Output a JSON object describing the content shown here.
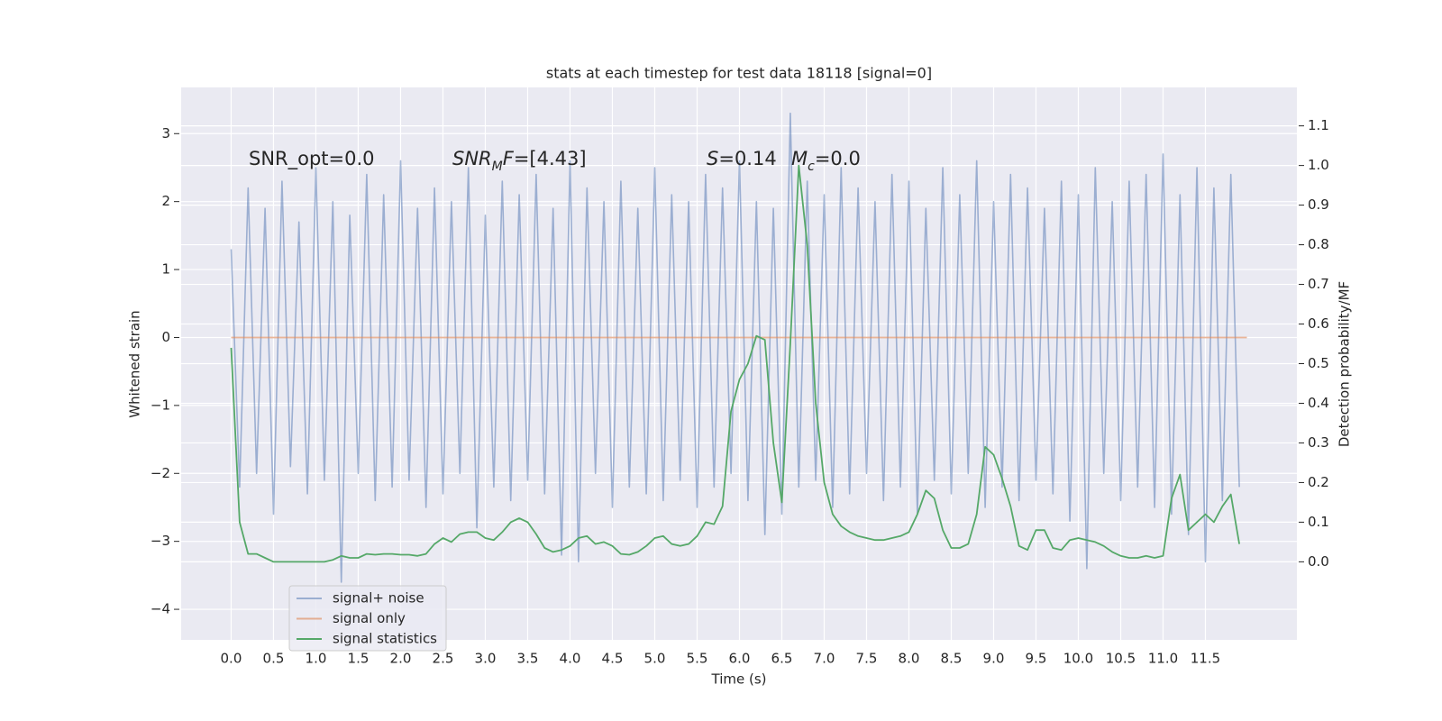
{
  "chart_data": {
    "type": "line",
    "title": "stats at each timestep for test data 18118 [signal=0]",
    "xlabel": "Time (s)",
    "ylabel": "Whitened strain",
    "y2label": "Detection probability/MF",
    "annotations": [
      {
        "parts": [
          {
            "text": "SNR_opt=0.0",
            "style": "normal"
          }
        ]
      },
      {
        "parts": [
          {
            "text": "SNR",
            "style": "italic"
          },
          {
            "text": "M",
            "style": "sub"
          },
          {
            "text": "F",
            "style": "italic"
          },
          {
            "text": "=[4.43]",
            "style": "normal"
          }
        ]
      },
      {
        "parts": [
          {
            "text": "S",
            "style": "italic"
          },
          {
            "text": "=0.14",
            "style": "normal"
          }
        ]
      },
      {
        "parts": [
          {
            "text": "M",
            "style": "italic"
          },
          {
            "text": "c",
            "style": "sub"
          },
          {
            "text": "=0.0",
            "style": "normal"
          }
        ]
      }
    ],
    "x": [
      0,
      0.1,
      0.2,
      0.3,
      0.4,
      0.5,
      0.6,
      0.7,
      0.8,
      0.9,
      1,
      1.1,
      1.2,
      1.3,
      1.4,
      1.5,
      1.6,
      1.7,
      1.8,
      1.9,
      2,
      2.1,
      2.2,
      2.3,
      2.4,
      2.5,
      2.6,
      2.7,
      2.8,
      2.9,
      3,
      3.1,
      3.2,
      3.3,
      3.4,
      3.5,
      3.6,
      3.7,
      3.8,
      3.9,
      4,
      4.1,
      4.2,
      4.3,
      4.4,
      4.5,
      4.6,
      4.7,
      4.8,
      4.9,
      5,
      5.1,
      5.2,
      5.3,
      5.4,
      5.5,
      5.6,
      5.7,
      5.8,
      5.9,
      6,
      6.1,
      6.2,
      6.3,
      6.4,
      6.5,
      6.6,
      6.7,
      6.8,
      6.9,
      7,
      7.1,
      7.2,
      7.3,
      7.4,
      7.5,
      7.6,
      7.7,
      7.8,
      7.9,
      8,
      8.1,
      8.2,
      8.3,
      8.4,
      8.5,
      8.6,
      8.7,
      8.8,
      8.9,
      9,
      9.1,
      9.2,
      9.3,
      9.4,
      9.5,
      9.6,
      9.7,
      9.8,
      9.9,
      10,
      10.1,
      10.2,
      10.3,
      10.4,
      10.5,
      10.6,
      10.7,
      10.8,
      10.9,
      11,
      11.1,
      11.2,
      11.3,
      11.4,
      11.5,
      11.6,
      11.7,
      11.8,
      11.9
    ],
    "series": [
      {
        "name": "signal+ noise",
        "color": "#4c72b0",
        "opacity": 0.5,
        "axis": "y",
        "values": [
          1.3,
          -2.2,
          2.2,
          -2.0,
          1.9,
          -2.6,
          2.3,
          -1.9,
          1.7,
          -2.3,
          2.5,
          -2.1,
          2.0,
          -3.6,
          1.8,
          -2.0,
          2.4,
          -2.4,
          2.1,
          -2.2,
          2.6,
          -2.1,
          1.9,
          -2.5,
          2.2,
          -2.3,
          2.0,
          -2.0,
          2.5,
          -2.8,
          1.8,
          -2.2,
          2.3,
          -2.4,
          2.1,
          -2.1,
          2.4,
          -2.3,
          1.9,
          -3.2,
          2.6,
          -3.3,
          2.2,
          -2.0,
          2.0,
          -2.5,
          2.3,
          -2.2,
          1.9,
          -2.3,
          2.5,
          -2.4,
          2.1,
          -2.1,
          2.0,
          -2.5,
          2.4,
          -2.2,
          2.2,
          -2.0,
          2.6,
          -2.4,
          2.0,
          -2.9,
          1.9,
          -2.6,
          3.3,
          -2.2,
          2.3,
          -2.1,
          2.1,
          -2.5,
          2.5,
          -2.3,
          2.2,
          -2.0,
          2.0,
          -2.4,
          2.4,
          -2.2,
          2.3,
          -2.6,
          1.9,
          -2.1,
          2.5,
          -2.3,
          2.1,
          -2.0,
          2.6,
          -2.5,
          2.0,
          -2.2,
          2.4,
          -2.4,
          2.2,
          -2.1,
          1.9,
          -2.3,
          2.3,
          -2.7,
          2.1,
          -3.4,
          2.5,
          -2.0,
          2.0,
          -2.4,
          2.3,
          -2.2,
          2.4,
          -2.5,
          2.7,
          -2.6,
          2.1,
          -2.9,
          2.5,
          -3.3,
          2.2,
          -2.4,
          2.4,
          -2.2
        ]
      },
      {
        "name": "signal only",
        "color": "#dd8452",
        "opacity": 0.6,
        "axis": "y",
        "x": [
          0,
          11.99
        ],
        "values": [
          0,
          0
        ]
      },
      {
        "name": "signal statistics",
        "color": "#55a868",
        "opacity": 1,
        "axis": "y2",
        "values": [
          0.54,
          0.1,
          0.02,
          0.02,
          0.01,
          0,
          0,
          0,
          0,
          0,
          0,
          0,
          0.005,
          0.015,
          0.01,
          0.01,
          0.02,
          0.018,
          0.02,
          0.02,
          0.018,
          0.018,
          0.015,
          0.02,
          0.045,
          0.06,
          0.05,
          0.07,
          0.075,
          0.075,
          0.06,
          0.055,
          0.075,
          0.1,
          0.11,
          0.1,
          0.07,
          0.035,
          0.025,
          0.03,
          0.04,
          0.06,
          0.065,
          0.045,
          0.05,
          0.04,
          0.02,
          0.018,
          0.025,
          0.04,
          0.06,
          0.065,
          0.045,
          0.04,
          0.045,
          0.065,
          0.1,
          0.095,
          0.14,
          0.38,
          0.46,
          0.5,
          0.57,
          0.56,
          0.3,
          0.15,
          0.55,
          1.0,
          0.8,
          0.4,
          0.2,
          0.12,
          0.09,
          0.075,
          0.065,
          0.06,
          0.055,
          0.055,
          0.06,
          0.065,
          0.075,
          0.12,
          0.18,
          0.16,
          0.08,
          0.035,
          0.035,
          0.045,
          0.12,
          0.29,
          0.27,
          0.21,
          0.14,
          0.04,
          0.03,
          0.08,
          0.08,
          0.035,
          0.03,
          0.055,
          0.06,
          0.055,
          0.05,
          0.04,
          0.025,
          0.015,
          0.01,
          0.01,
          0.015,
          0.01,
          0.015,
          0.16,
          0.22,
          0.08,
          0.1,
          0.12,
          0.1,
          0.14,
          0.17,
          0.045
        ]
      }
    ],
    "xlim": [
      -0.59,
      12.58
    ],
    "ylim": [
      -4.45,
      3.68
    ],
    "y2lim": [
      -0.197,
      1.197
    ],
    "xticks": [
      {
        "value": 0,
        "label": "0.0"
      },
      0.5,
      {
        "value": 1,
        "label": "1.0"
      },
      1.5,
      {
        "value": 2,
        "label": "2.0"
      },
      2.5,
      {
        "value": 3,
        "label": "3.0"
      },
      3.5,
      {
        "value": 4,
        "label": "4.0"
      },
      4.5,
      {
        "value": 5,
        "label": "5.0"
      },
      5.5,
      {
        "value": 6,
        "label": "6.0"
      },
      6.5,
      {
        "value": 7,
        "label": "7.0"
      },
      7.5,
      {
        "value": 8,
        "label": "8.0"
      },
      8.5,
      {
        "value": 9,
        "label": "9.0"
      },
      9.5,
      {
        "value": 10,
        "label": "10.0"
      },
      10.5,
      {
        "value": 11,
        "label": "11.0"
      },
      11.5
    ],
    "yticks": [
      {
        "value": -4,
        "label": "−4"
      },
      {
        "value": -3,
        "label": "−3"
      },
      {
        "value": -2,
        "label": "−2"
      },
      {
        "value": -1,
        "label": "−1"
      },
      0,
      1,
      2,
      3
    ],
    "y2ticks": [
      {
        "value": 0,
        "label": "0.0"
      },
      0.1,
      0.2,
      0.3,
      0.4,
      0.5,
      0.6,
      0.7,
      0.8,
      0.9,
      {
        "value": 1,
        "label": "1.0"
      },
      1.1
    ],
    "grid": true,
    "legend": "lower left",
    "background": "#eaeaf2"
  }
}
